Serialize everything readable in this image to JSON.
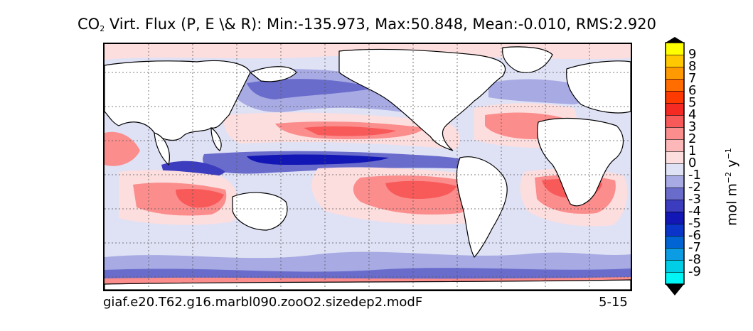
{
  "title": {
    "prefix": "CO",
    "subscript": "2",
    "rest": " Virt. Flux (P, E \\& R): Min:-135.973, Max:50.848, Mean:-0.010, RMS:2.920"
  },
  "caption": {
    "case_name": "giaf.e20.T62.g16.marbl090.zooO2.sizedep2.modF",
    "period": "5-15"
  },
  "colorbar": {
    "units_text": "mol m",
    "units_exp1": "−2",
    "units_mid": " y",
    "units_exp2": "−1",
    "tick_labels": [
      "9",
      "8",
      "7",
      "6",
      "5",
      "4",
      "3",
      "2",
      "1",
      "0",
      "-1",
      "-2",
      "-3",
      "-4",
      "-5",
      "-6",
      "-7",
      "-8",
      "-9"
    ],
    "colors": [
      "#00f5f5",
      "#00cde6",
      "#0b9ce3",
      "#0064d2",
      "#0a35c8",
      "#1216b4",
      "#3c3cbe",
      "#6a6ccc",
      "#a7aae3",
      "#dfe1f5",
      "#fddede",
      "#fcb8b8",
      "#fb8d8d",
      "#f85a5a",
      "#f52a22",
      "#ff3a00",
      "#ff6c00",
      "#ff9b00",
      "#ffc800",
      "#ffff00"
    ],
    "under_color": "#000000",
    "over_color": "#000000"
  },
  "map": {
    "ocean_background_color": "#dfe1f5",
    "land_color": "#ffffff",
    "gridline_color": "#555555"
  }
}
